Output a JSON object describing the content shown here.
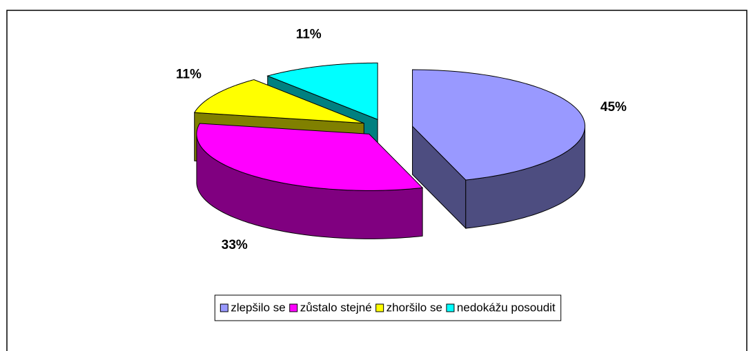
{
  "chart_data": {
    "type": "pie",
    "three_d": true,
    "categories": [
      "zlepšilo se",
      "zůstalo stejné",
      "zhoršilo se",
      "nedokážu posoudit"
    ],
    "values": [
      45,
      33,
      11,
      11
    ],
    "value_labels": [
      "45%",
      "33%",
      "11%",
      "11%"
    ],
    "colors": [
      "#9999ff",
      "#ff00ff",
      "#ffff00",
      "#00ffff"
    ],
    "legend": "bottom"
  }
}
